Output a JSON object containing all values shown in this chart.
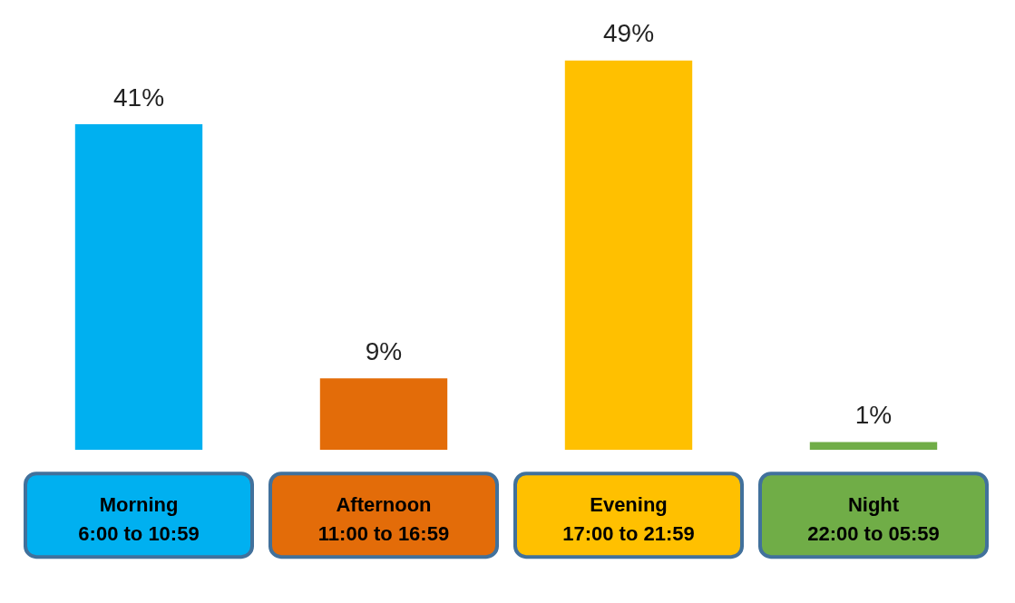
{
  "chart_data": {
    "type": "bar",
    "categories": [
      [
        "Morning",
        "6:00 to 10:59"
      ],
      [
        "Afternoon",
        "11:00 to 16:59"
      ],
      [
        "Evening",
        "17:00 to 21:59"
      ],
      [
        "Night",
        "22:00 to 05:59"
      ]
    ],
    "values": [
      41,
      9,
      49,
      1
    ],
    "colors": [
      "#00b0f0",
      "#e36c09",
      "#ffc000",
      "#70ad47"
    ],
    "value_labels": [
      "41%",
      "9%",
      "49%",
      "1%"
    ],
    "grid": false,
    "legend": false
  }
}
